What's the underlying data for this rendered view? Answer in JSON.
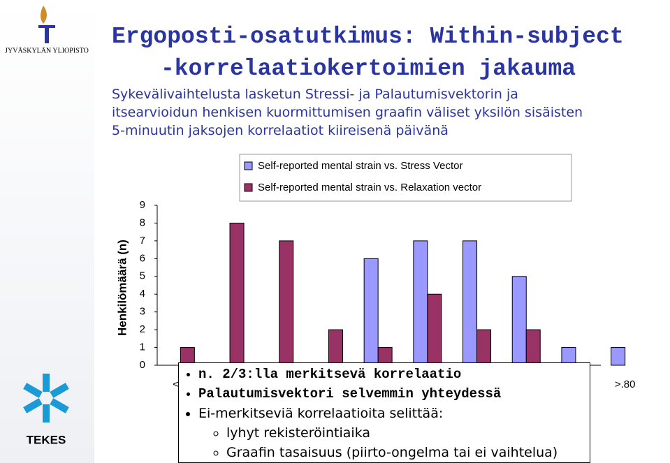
{
  "logo_top": "JYVÄSKYLÄN YLIOPISTO",
  "logo_bottom": "TEKES",
  "title": [
    "Ergoposti-osatutkimus: Within-subject",
    "-korrelaatiokertoimien jakauma"
  ],
  "subtitle": [
    "Sykevälivaihtelusta lasketun Stressi- ja Palautumisvektorin ja",
    "itsearvioidun henkisen kuormittumisen graafin väliset yksilön sisäisten",
    "5-minuutin jaksojen korrelaatiot kiireisenä päivänä"
  ],
  "chart_data": {
    "type": "bar",
    "y_label": "Henkilömäärä (n)",
    "categories": [
      "< -.",
      null,
      null,
      null,
      null,
      null,
      null,
      null,
      null,
      ">.80"
    ],
    "series": [
      {
        "name": "Self-reported mental strain vs. Stress Vector",
        "color": "#9999ff",
        "values": [
          0,
          0,
          0,
          0,
          6,
          7,
          7,
          5,
          1,
          1
        ]
      },
      {
        "name": "Self-reported mental strain vs. Relaxation vector",
        "color": "#993366",
        "values": [
          1,
          8,
          7,
          2,
          1,
          4,
          2,
          2,
          0,
          0
        ]
      }
    ],
    "ylim": [
      0,
      9
    ],
    "yticks": [
      0,
      1,
      2,
      3,
      4,
      5,
      6,
      7,
      8,
      9
    ]
  },
  "notes": {
    "items": [
      "n. 2/3:lla merkitsevä korrelaatio",
      "Palautumisvektori selvemmin yhteydessä",
      "Ei-merkitseviä korrelaatioita selittää:"
    ],
    "subitems": [
      "lyhyt rekisteröintiaika",
      "Graafin tasaisuus (piirto-ongelma tai ei vaihtelua)"
    ]
  }
}
